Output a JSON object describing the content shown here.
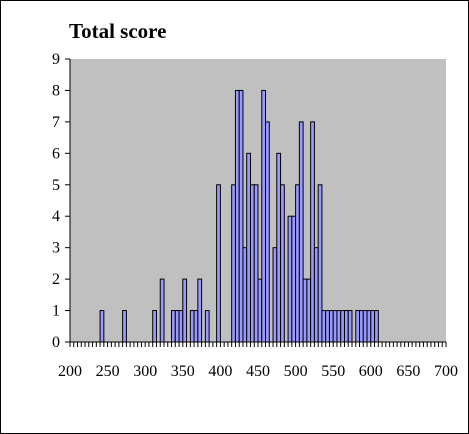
{
  "chart_data": {
    "type": "bar",
    "title": "Total score",
    "xlabel": "",
    "ylabel": "",
    "bin_width": 5,
    "xlim": [
      200,
      700
    ],
    "ylim": [
      0,
      9
    ],
    "x_ticks": [
      200,
      250,
      300,
      350,
      400,
      450,
      500,
      550,
      600,
      650,
      700
    ],
    "y_ticks": [
      0,
      1,
      2,
      3,
      4,
      5,
      6,
      7,
      8,
      9
    ],
    "x": [
      240,
      270,
      310,
      320,
      335,
      340,
      345,
      350,
      360,
      365,
      370,
      380,
      395,
      415,
      420,
      425,
      430,
      435,
      440,
      445,
      450,
      455,
      460,
      470,
      475,
      480,
      490,
      495,
      500,
      505,
      510,
      515,
      520,
      525,
      530,
      535,
      540,
      545,
      550,
      555,
      560,
      565,
      570,
      580,
      585,
      590,
      595,
      600,
      605
    ],
    "values": [
      1,
      1,
      1,
      2,
      1,
      1,
      1,
      2,
      1,
      1,
      2,
      1,
      5,
      5,
      8,
      8,
      3,
      6,
      5,
      5,
      2,
      8,
      7,
      3,
      6,
      5,
      4,
      4,
      5,
      7,
      2,
      2,
      7,
      3,
      5,
      1,
      1,
      1,
      1,
      1,
      1,
      1,
      1,
      1,
      1,
      1,
      1,
      1,
      1
    ],
    "bar_color": "#9999ff",
    "plot_background": "#c0c0c0",
    "grid": false,
    "legend": "none"
  }
}
